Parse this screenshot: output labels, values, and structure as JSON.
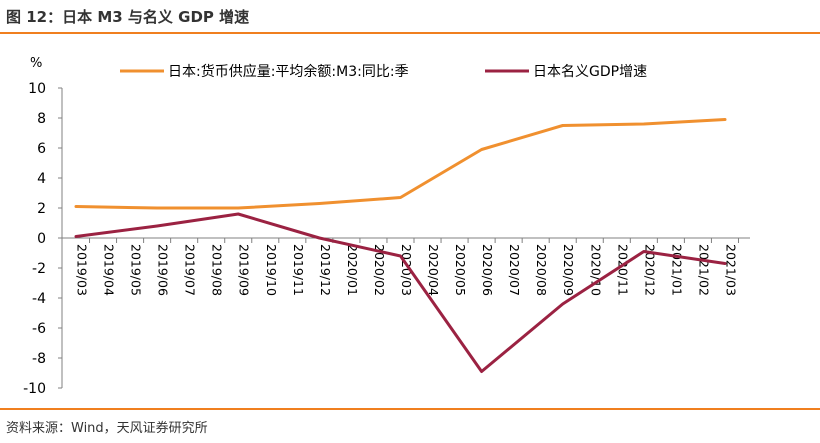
{
  "figure": {
    "title": "图 12：日本 M3 与名义 GDP 增速",
    "source": "资料来源：Wind，天风证券研究所"
  },
  "chart_data": {
    "type": "line",
    "unit_label": "%",
    "ylim": [
      -10,
      10
    ],
    "yticks": [
      -10,
      -8,
      -6,
      -4,
      -2,
      0,
      2,
      4,
      6,
      8,
      10
    ],
    "categories": [
      "2019/03",
      "2019/04",
      "2019/05",
      "2019/06",
      "2019/07",
      "2019/08",
      "2019/09",
      "2019/10",
      "2019/11",
      "2019/12",
      "2020/01",
      "2020/02",
      "2020/03",
      "2020/04",
      "2020/05",
      "2020/06",
      "2020/07",
      "2020/08",
      "2020/09",
      "2020/10",
      "2020/11",
      "2020/12",
      "2021/01",
      "2021/02",
      "2021/03"
    ],
    "legend_position": "top",
    "series": [
      {
        "name": "日本:货币供应量:平均余额:M3:同比:季",
        "color": "#f0902f",
        "points": [
          {
            "x": "2019/03",
            "y": 2.1
          },
          {
            "x": "2019/06",
            "y": 2.0
          },
          {
            "x": "2019/09",
            "y": 2.0
          },
          {
            "x": "2019/12",
            "y": 2.3
          },
          {
            "x": "2020/03",
            "y": 2.7
          },
          {
            "x": "2020/06",
            "y": 5.9
          },
          {
            "x": "2020/09",
            "y": 7.5
          },
          {
            "x": "2020/12",
            "y": 7.6
          },
          {
            "x": "2021/03",
            "y": 7.9
          }
        ]
      },
      {
        "name": "日本名义GDP增速",
        "color": "#9b2242",
        "points": [
          {
            "x": "2019/03",
            "y": 0.1
          },
          {
            "x": "2019/06",
            "y": 0.8
          },
          {
            "x": "2019/09",
            "y": 1.6
          },
          {
            "x": "2019/12",
            "y": 0.0
          },
          {
            "x": "2020/03",
            "y": -1.2
          },
          {
            "x": "2020/06",
            "y": -8.9
          },
          {
            "x": "2020/09",
            "y": -4.4
          },
          {
            "x": "2020/12",
            "y": -0.9
          },
          {
            "x": "2021/03",
            "y": -1.7
          }
        ]
      }
    ]
  }
}
